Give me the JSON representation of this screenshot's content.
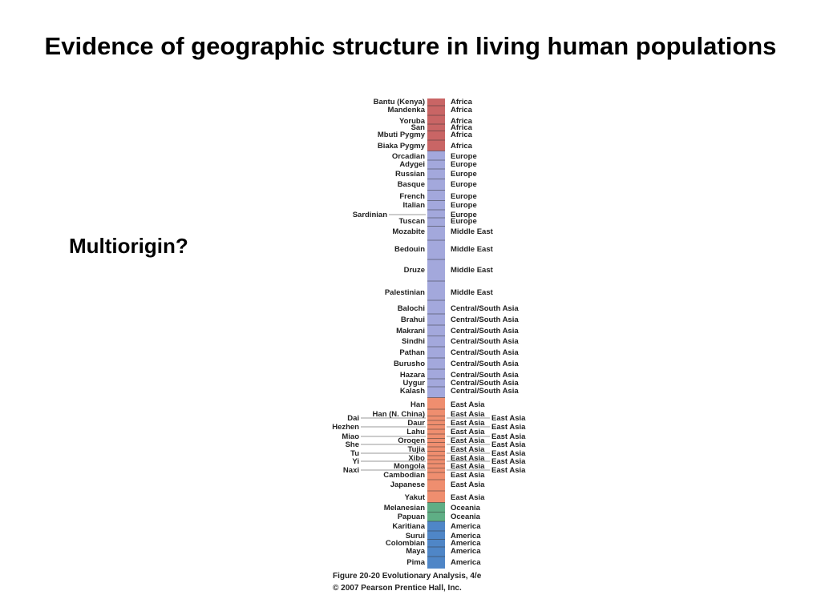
{
  "slide": {
    "title": "Evidence of geographic structure in living human populations",
    "side_note": "Multiorigin?"
  },
  "figure": {
    "caption_line1": "Figure 20-20  Evolutionary Analysis, 4/e",
    "caption_line2": "© 2007 Pearson Prentice Hall, Inc.",
    "region_colors": {
      "Africa": "#c96565",
      "Europe": "#a3a8dc",
      "Middle East": "#a3a8dc",
      "Central/South Asia": "#a3a8dc",
      "East Asia": "#ef8e6f",
      "Oceania": "#5fae85",
      "America": "#4f86c7"
    },
    "populations": [
      {
        "name": "Bantu (Kenya)",
        "region": "Africa"
      },
      {
        "name": "Mandenka",
        "region": "Africa"
      },
      {
        "name": "Yoruba",
        "region": "Africa"
      },
      {
        "name": "San",
        "region": "Africa"
      },
      {
        "name": "Mbuti Pygmy",
        "region": "Africa"
      },
      {
        "name": "Biaka Pygmy",
        "region": "Africa"
      },
      {
        "name": "Orcadian",
        "region": "Europe"
      },
      {
        "name": "Adygei",
        "region": "Europe"
      },
      {
        "name": "Russian",
        "region": "Europe"
      },
      {
        "name": "Basque",
        "region": "Europe"
      },
      {
        "name": "French",
        "region": "Europe"
      },
      {
        "name": "Italian",
        "region": "Europe"
      },
      {
        "name": "Sardinian",
        "region": "Europe"
      },
      {
        "name": "Tuscan",
        "region": "Europe"
      },
      {
        "name": "Mozabite",
        "region": "Middle East"
      },
      {
        "name": "Bedouin",
        "region": "Middle East"
      },
      {
        "name": "Druze",
        "region": "Middle East"
      },
      {
        "name": "Palestinian",
        "region": "Middle East"
      },
      {
        "name": "Balochi",
        "region": "Central/South Asia"
      },
      {
        "name": "Brahui",
        "region": "Central/South Asia"
      },
      {
        "name": "Makrani",
        "region": "Central/South Asia"
      },
      {
        "name": "Sindhi",
        "region": "Central/South Asia"
      },
      {
        "name": "Pathan",
        "region": "Central/South Asia"
      },
      {
        "name": "Burusho",
        "region": "Central/South Asia"
      },
      {
        "name": "Hazara",
        "region": "Central/South Asia"
      },
      {
        "name": "Uygur",
        "region": "Central/South Asia"
      },
      {
        "name": "Kalash",
        "region": "Central/South Asia"
      },
      {
        "name": "Han",
        "region": "East Asia"
      },
      {
        "name": "Han (N. China)",
        "region": "East Asia"
      },
      {
        "name": "Dai",
        "region": "East Asia"
      },
      {
        "name": "Daur",
        "region": "East Asia"
      },
      {
        "name": "Hezhen",
        "region": "East Asia"
      },
      {
        "name": "Lahu",
        "region": "East Asia"
      },
      {
        "name": "Miao",
        "region": "East Asia"
      },
      {
        "name": "Oroqen",
        "region": "East Asia"
      },
      {
        "name": "She",
        "region": "East Asia"
      },
      {
        "name": "Tujia",
        "region": "East Asia"
      },
      {
        "name": "Tu",
        "region": "East Asia"
      },
      {
        "name": "Xibo",
        "region": "East Asia"
      },
      {
        "name": "Yi",
        "region": "East Asia"
      },
      {
        "name": "Mongola",
        "region": "East Asia"
      },
      {
        "name": "Naxi",
        "region": "East Asia"
      },
      {
        "name": "Cambodian",
        "region": "East Asia"
      },
      {
        "name": "Japanese",
        "region": "East Asia"
      },
      {
        "name": "Yakut",
        "region": "East Asia"
      },
      {
        "name": "Melanesian",
        "region": "Oceania"
      },
      {
        "name": "Papuan",
        "region": "Oceania"
      },
      {
        "name": "Karitiana",
        "region": "America"
      },
      {
        "name": "Surui",
        "region": "America"
      },
      {
        "name": "Colombian",
        "region": "America"
      },
      {
        "name": "Maya",
        "region": "America"
      },
      {
        "name": "Pima",
        "region": "America"
      }
    ]
  }
}
